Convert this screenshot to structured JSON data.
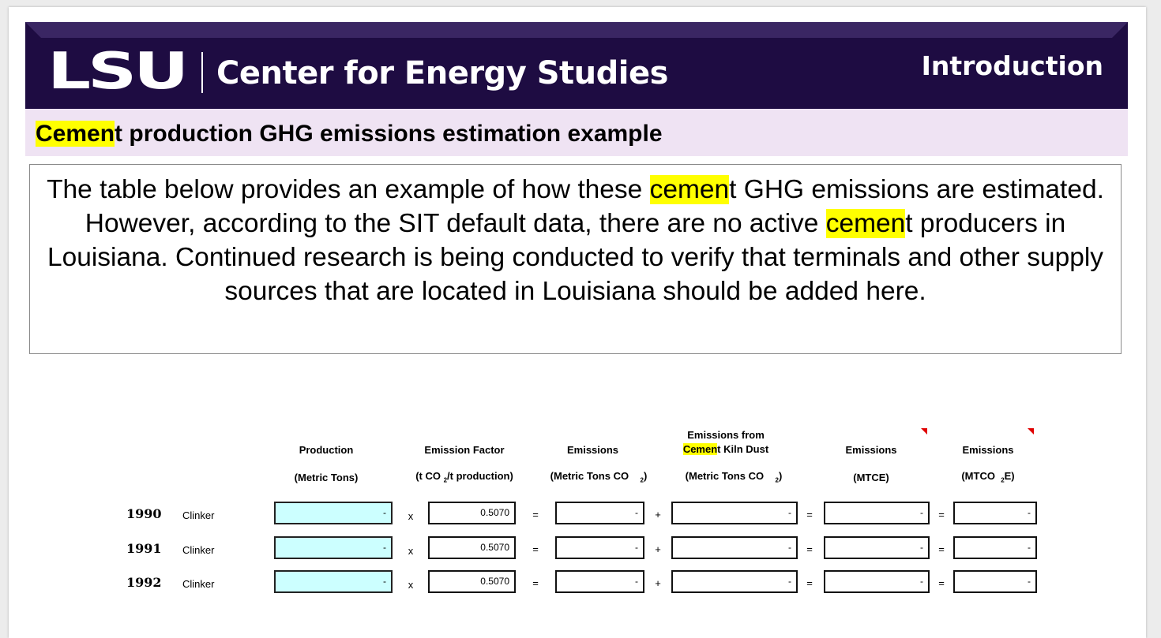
{
  "header": {
    "logo_lsu": "LSU",
    "logo_org": "Center for Energy Studies",
    "section": "Introduction"
  },
  "subtitle": {
    "highlight": "Cemen",
    "rest": "t production GHG emissions estimation example"
  },
  "description": {
    "p1": "The table below provides an example of how these ",
    "hl1": "cemen",
    "p2": "t GHG emissions are estimated.  However, according to the SIT default data, there are no active ",
    "hl2": "cemen",
    "p3": "t producers in Louisiana.  Continued research is being conducted to verify that terminals and other supply sources that are located in Louisiana should be added here."
  },
  "table": {
    "headers": {
      "production": "Production",
      "production_unit": "(Metric Tons)",
      "factor": "Emission Factor",
      "factor_unit_a": "(t CO",
      "factor_unit_sub": "2",
      "factor_unit_b": "/t production)",
      "emissions": "Emissions",
      "emissions_unit_a": "(Metric Tons CO",
      "emissions_unit_sub": "2",
      "emissions_unit_b": ")",
      "ckd_line1": "Emissions from",
      "ckd_hl": "Cemen",
      "ckd_rest": "t Kiln Dust",
      "ckd_unit_a": "(Metric Tons CO",
      "ckd_unit_sub": "2",
      "ckd_unit_b": ")",
      "mtce": "Emissions",
      "mtce_unit": "(MTCE)",
      "mtco2e": "Emissions",
      "mtco2e_unit_a": "(MTCO",
      "mtco2e_unit_sub": "2",
      "mtco2e_unit_b": "E)"
    },
    "operators": {
      "times": "x",
      "equals": "=",
      "plus": "+"
    },
    "rows": [
      {
        "year": "1990",
        "material": "Clinker",
        "production": "-",
        "factor": "0.5070",
        "emissions": "-",
        "ckd": "-",
        "mtce": "-",
        "mtco2e": "-"
      },
      {
        "year": "1991",
        "material": "Clinker",
        "production": "-",
        "factor": "0.5070",
        "emissions": "-",
        "ckd": "-",
        "mtce": "-",
        "mtco2e": "-"
      },
      {
        "year": "1992",
        "material": "Clinker",
        "production": "-",
        "factor": "0.5070",
        "emissions": "-",
        "ckd": "-",
        "mtce": "-",
        "mtco2e": "-"
      }
    ]
  },
  "colors": {
    "banner": "#1e0c42",
    "strip": "#efe3f3",
    "highlight": "#ffff00",
    "input_cell": "#ccffff",
    "comment_flag": "#e00000"
  }
}
